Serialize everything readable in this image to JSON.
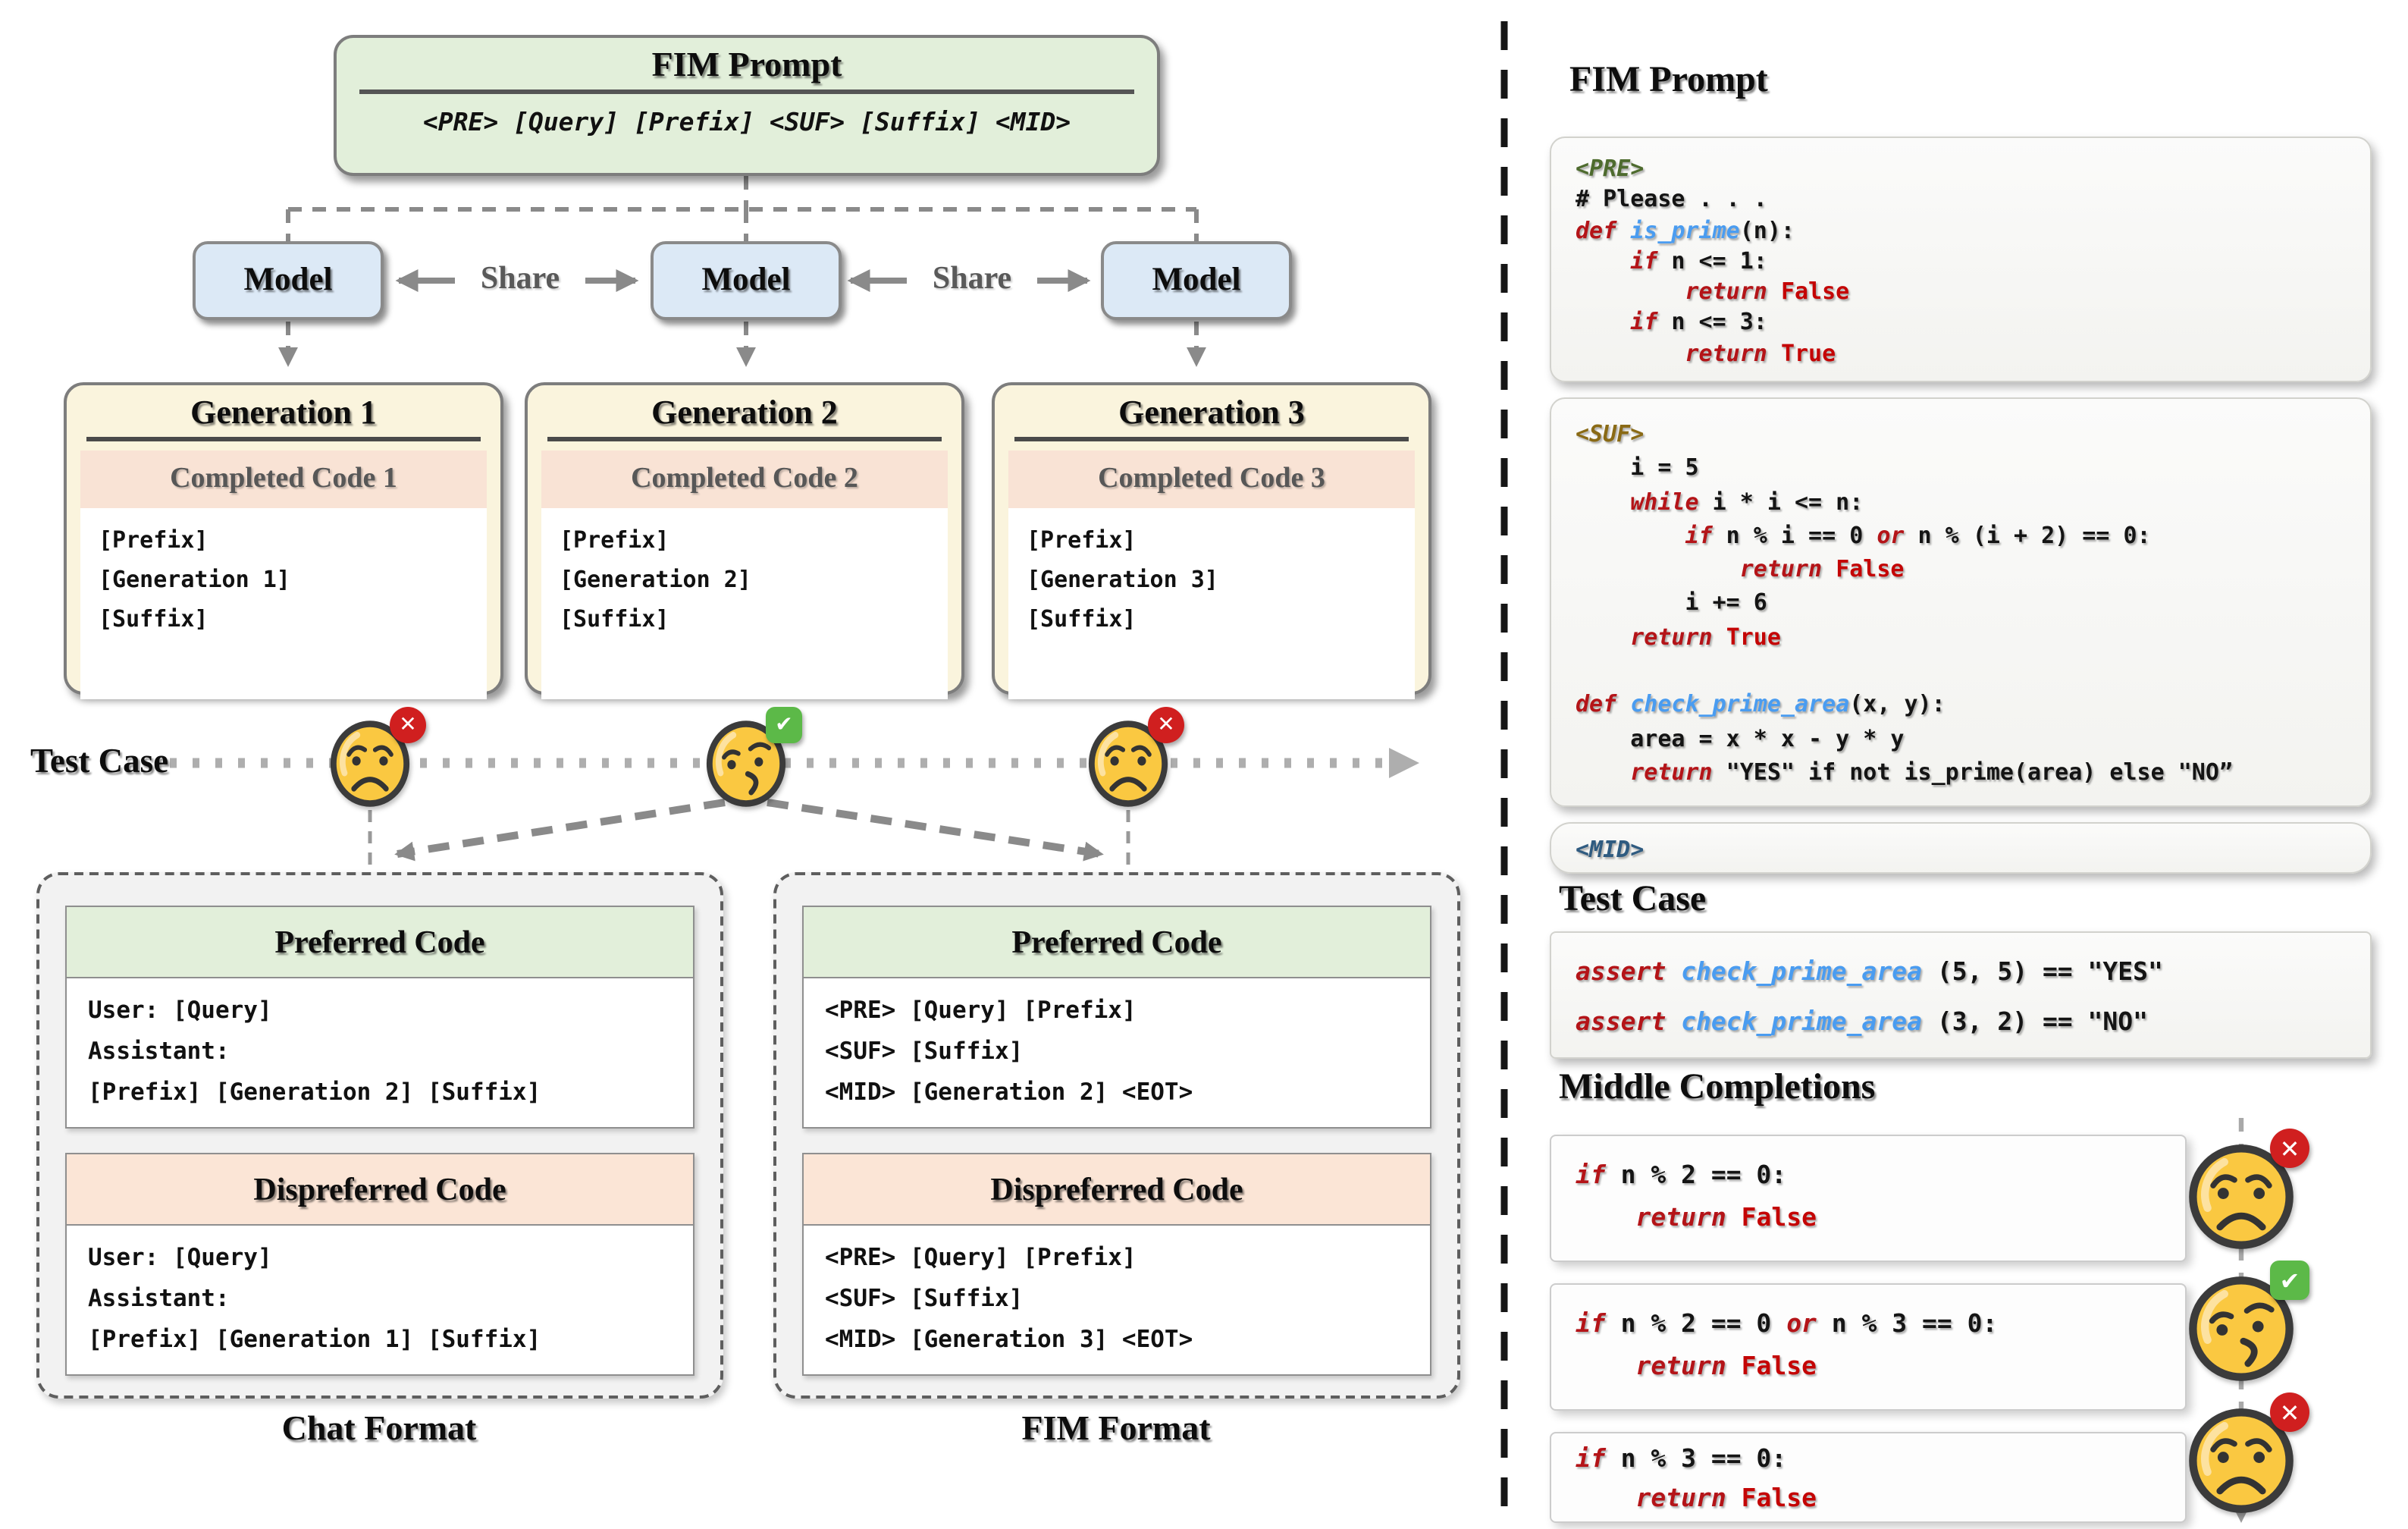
{
  "colors": {
    "keyword_red": "#b41418",
    "value_red": "#c40505",
    "function_blue": "#4a9cf0",
    "tag_pre_green": "#4e6b2e",
    "tag_suf_gold": "#8a6a15",
    "tag_mid_blue": "#2f5b80",
    "box_green": "#e2efda",
    "box_blue": "#dce9f6",
    "box_cream": "#faf4dd",
    "box_salmon": "#f9e3d5",
    "header_peach": "#fbe5d6",
    "fail_red": "#d01f1f",
    "pass_green": "#5cb948",
    "emoji_yellow": "#fac841"
  },
  "left": {
    "fim_prompt": {
      "title": "FIM Prompt",
      "template": "<PRE> [Query] [Prefix] <SUF> [Suffix] <MID>"
    },
    "models": [
      "Model",
      "Model",
      "Model"
    ],
    "share_label": "Share",
    "test_case_label": "Test Case",
    "generations": [
      {
        "title": "Generation 1",
        "header": "Completed Code 1",
        "lines": [
          "[Prefix]",
          "[Generation 1]",
          "[Suffix]"
        ],
        "verdict": "fail",
        "face": "sad"
      },
      {
        "title": "Generation 2",
        "header": "Completed Code 2",
        "lines": [
          "[Prefix]",
          "[Generation 2]",
          "[Suffix]"
        ],
        "verdict": "pass",
        "face": "smirk"
      },
      {
        "title": "Generation 3",
        "header": "Completed Code 3",
        "lines": [
          "[Prefix]",
          "[Generation 3]",
          "[Suffix]"
        ],
        "verdict": "fail",
        "face": "sad"
      }
    ],
    "chat_format": {
      "label": "Chat Format",
      "preferred": {
        "title": "Preferred Code",
        "lines": [
          "User: [Query]",
          "Assistant:",
          "[Prefix] [Generation 2] [Suffix]"
        ]
      },
      "dispreferred": {
        "title": "Dispreferred Code",
        "lines": [
          "User: [Query]",
          "Assistant:",
          "[Prefix] [Generation 1] [Suffix]"
        ]
      }
    },
    "fim_format": {
      "label": "FIM Format",
      "preferred": {
        "title": "Preferred Code",
        "lines": [
          "<PRE> [Query] [Prefix]",
          "<SUF> [Suffix]",
          "<MID> [Generation 2] <EOT>"
        ]
      },
      "dispreferred": {
        "title": "Dispreferred Code",
        "lines": [
          "<PRE> [Query] [Prefix]",
          "<SUF> [Suffix]",
          "<MID> [Generation 3] <EOT>"
        ]
      }
    }
  },
  "right": {
    "fim_prompt_heading": "FIM Prompt",
    "pre_block": {
      "lines": [
        [
          [
            "tpre",
            "<PRE>"
          ]
        ],
        [
          [
            "pl",
            "# Please . . ."
          ]
        ],
        [
          [
            "kw",
            "def"
          ],
          [
            "pl",
            " "
          ],
          [
            "fn",
            "is_prime"
          ],
          [
            "pl",
            "(n):"
          ]
        ],
        [
          [
            "pl",
            "    "
          ],
          [
            "kw",
            "if"
          ],
          [
            "pl",
            " n <= 1:"
          ]
        ],
        [
          [
            "pl",
            "        "
          ],
          [
            "kw",
            "return"
          ],
          [
            "pl",
            " "
          ],
          [
            "val",
            "False"
          ]
        ],
        [
          [
            "pl",
            "    "
          ],
          [
            "kw",
            "if"
          ],
          [
            "pl",
            " n <= 3:"
          ]
        ],
        [
          [
            "pl",
            "        "
          ],
          [
            "kw",
            "return"
          ],
          [
            "pl",
            " "
          ],
          [
            "val",
            "True"
          ]
        ]
      ]
    },
    "suf_block": {
      "lines": [
        [
          [
            "tsuf",
            "<SUF>"
          ]
        ],
        [
          [
            "pl",
            "    i = 5"
          ]
        ],
        [
          [
            "pl",
            "    "
          ],
          [
            "kw",
            "while"
          ],
          [
            "pl",
            " i * i <= n:"
          ]
        ],
        [
          [
            "pl",
            "        "
          ],
          [
            "kw",
            "if"
          ],
          [
            "pl",
            " n % i == 0 "
          ],
          [
            "kw",
            "or"
          ],
          [
            "pl",
            " n % (i + 2) == 0:"
          ]
        ],
        [
          [
            "pl",
            "            "
          ],
          [
            "kw",
            "return"
          ],
          [
            "pl",
            " "
          ],
          [
            "val",
            "False"
          ]
        ],
        [
          [
            "pl",
            "        i += 6"
          ]
        ],
        [
          [
            "pl",
            "    "
          ],
          [
            "kw",
            "return"
          ],
          [
            "pl",
            " "
          ],
          [
            "val",
            "True"
          ]
        ],
        [
          [
            "pl",
            ""
          ]
        ],
        [
          [
            "kw",
            "def"
          ],
          [
            "pl",
            " "
          ],
          [
            "fn",
            "check_prime_area"
          ],
          [
            "pl",
            "(x, y):"
          ]
        ],
        [
          [
            "pl",
            "    area = x * x - y * y"
          ]
        ],
        [
          [
            "pl",
            "    "
          ],
          [
            "kw",
            "return"
          ],
          [
            "pl",
            " \"YES\" if not is_prime(area) else \"NO”"
          ]
        ]
      ]
    },
    "mid_block": {
      "lines": [
        [
          [
            "tmid",
            "<MID>"
          ]
        ]
      ]
    },
    "test_case_heading": "Test Case",
    "test_block": {
      "lines": [
        [
          [
            "kw",
            "assert"
          ],
          [
            "pl",
            " "
          ],
          [
            "fn",
            "check_prime_area"
          ],
          [
            "pl",
            " (5, 5) == \"YES\""
          ]
        ],
        [
          [
            "kw",
            "assert"
          ],
          [
            "pl",
            " "
          ],
          [
            "fn",
            "check_prime_area"
          ],
          [
            "pl",
            " (3, 2) == \"NO\""
          ]
        ]
      ]
    },
    "middle_heading": "Middle Completions",
    "completions": [
      {
        "verdict": "fail",
        "face": "sad",
        "lines": [
          [
            [
              "kw",
              "if"
            ],
            [
              "pl",
              " n % 2 == 0:"
            ]
          ],
          [
            [
              "pl",
              "    "
            ],
            [
              "kw",
              "return"
            ],
            [
              "pl",
              " "
            ],
            [
              "val",
              "False"
            ]
          ]
        ]
      },
      {
        "verdict": "pass",
        "face": "smirk",
        "lines": [
          [
            [
              "kw",
              "if"
            ],
            [
              "pl",
              " n % 2 == 0 "
            ],
            [
              "kw",
              "or"
            ],
            [
              "pl",
              " n % 3 == 0:"
            ]
          ],
          [
            [
              "pl",
              "    "
            ],
            [
              "kw",
              "return"
            ],
            [
              "pl",
              " "
            ],
            [
              "val",
              "False"
            ]
          ]
        ]
      },
      {
        "verdict": "fail",
        "face": "sad",
        "lines": [
          [
            [
              "kw",
              "if"
            ],
            [
              "pl",
              " n % 3 == 0:"
            ]
          ],
          [
            [
              "pl",
              "    "
            ],
            [
              "kw",
              "return"
            ],
            [
              "pl",
              " "
            ],
            [
              "val",
              "False"
            ]
          ]
        ]
      }
    ]
  }
}
